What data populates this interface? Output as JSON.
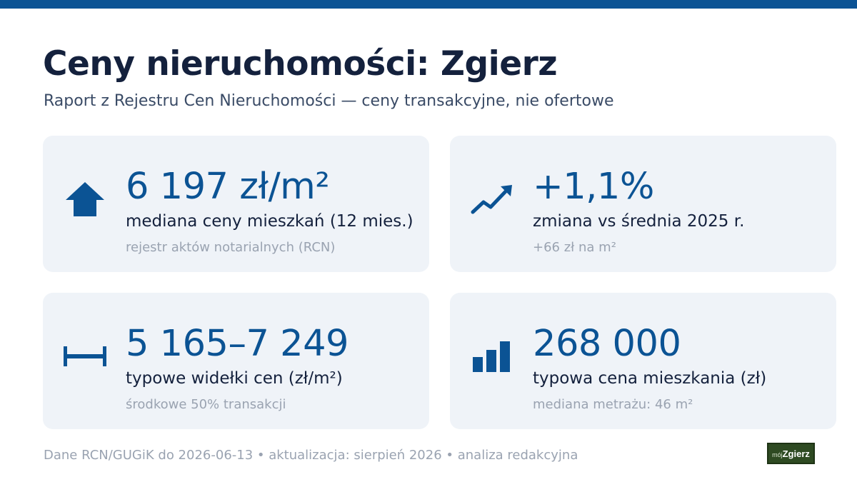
{
  "header": {
    "title": "Ceny nieruchomości: Zgierz",
    "subtitle": "Raport z Rejestru Cen Nieruchomości — ceny transakcyjne, nie ofertowe"
  },
  "cards": [
    {
      "icon": "house-icon",
      "value": "6 197 zł/m²",
      "label": "mediana ceny mieszkań (12 mies.)",
      "note": "rejestr aktów notarialnych (RCN)"
    },
    {
      "icon": "trend-up-icon",
      "value": "+1,1%",
      "label": "zmiana vs średnia 2025 r.",
      "note": "+66 zł na m²"
    },
    {
      "icon": "range-icon",
      "value": "5 165–7 249",
      "label": "typowe widełki cen (zł/m²)",
      "note": "środkowe 50% transakcji"
    },
    {
      "icon": "bar-chart-icon",
      "value": "268 000",
      "label": "typowa cena mieszkania (zł)",
      "note": "mediana metrażu: 46 m²"
    }
  ],
  "footer": {
    "text": "Dane RCN/GUGiK do 2026-06-13 • aktualizacja: sierpień 2026 • analiza redakcyjna"
  },
  "logo": {
    "small": "mój",
    "main": "Zgierz"
  },
  "colors": {
    "accent": "#0b5394",
    "card_bg": "#eff3f8",
    "text_dark": "#14213d",
    "text_muted": "#9aa3b1"
  }
}
